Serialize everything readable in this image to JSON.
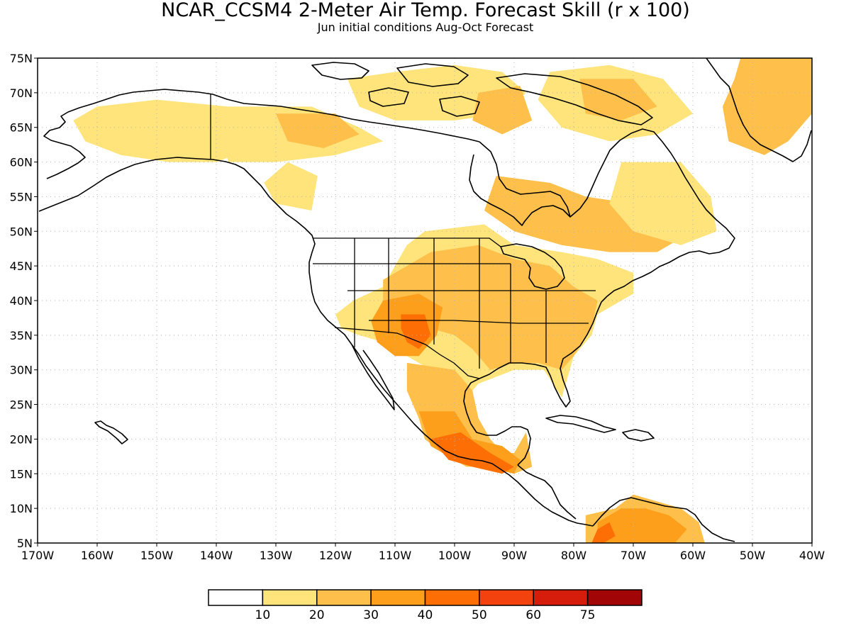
{
  "title": "NCAR_CCSM4 2-Meter Air Temp. Forecast Skill (r x 100)",
  "subtitle": "Jun initial conditions  Aug-Oct Forecast",
  "chart_data": {
    "type": "map",
    "lon_range": [
      -170,
      -40
    ],
    "lat_range": [
      5,
      75
    ],
    "lat_ticks": [
      {
        "value": 75,
        "label": "75N"
      },
      {
        "value": 70,
        "label": "70N"
      },
      {
        "value": 65,
        "label": "65N"
      },
      {
        "value": 60,
        "label": "60N"
      },
      {
        "value": 55,
        "label": "55N"
      },
      {
        "value": 50,
        "label": "50N"
      },
      {
        "value": 45,
        "label": "45N"
      },
      {
        "value": 40,
        "label": "40N"
      },
      {
        "value": 35,
        "label": "35N"
      },
      {
        "value": 30,
        "label": "30N"
      },
      {
        "value": 25,
        "label": "25N"
      },
      {
        "value": 20,
        "label": "20N"
      },
      {
        "value": 15,
        "label": "15N"
      },
      {
        "value": 10,
        "label": "10N"
      },
      {
        "value": 5,
        "label": "5N"
      }
    ],
    "lon_ticks": [
      {
        "value": -170,
        "label": "170W"
      },
      {
        "value": -160,
        "label": "160W"
      },
      {
        "value": -150,
        "label": "150W"
      },
      {
        "value": -140,
        "label": "140W"
      },
      {
        "value": -130,
        "label": "130W"
      },
      {
        "value": -120,
        "label": "120W"
      },
      {
        "value": -110,
        "label": "110W"
      },
      {
        "value": -100,
        "label": "100W"
      },
      {
        "value": -90,
        "label": "90W"
      },
      {
        "value": -80,
        "label": "80W"
      },
      {
        "value": -70,
        "label": "70W"
      },
      {
        "value": -60,
        "label": "60W"
      },
      {
        "value": -50,
        "label": "50W"
      },
      {
        "value": -40,
        "label": "40W"
      }
    ],
    "grid": true,
    "legend": {
      "placement": "bottom",
      "colors": [
        "#ffffff",
        "#fee47a",
        "#fec04a",
        "#fe9f1c",
        "#fd6f05",
        "#f4420f",
        "#d61c0b",
        "#a20505"
      ],
      "labels": [
        "10",
        "20",
        "30",
        "40",
        "50",
        "60",
        "75"
      ]
    },
    "skill_regions": [
      {
        "level": 1,
        "points": [
          [
            -160,
            68
          ],
          [
            -150,
            69
          ],
          [
            -138,
            68
          ],
          [
            -132,
            66
          ],
          [
            -134,
            62
          ],
          [
            -140,
            60
          ],
          [
            -148,
            60
          ],
          [
            -156,
            61
          ],
          [
            -162,
            63
          ],
          [
            -164,
            66
          ]
        ]
      },
      {
        "level": 1,
        "points": [
          [
            -140,
            68
          ],
          [
            -124,
            68
          ],
          [
            -116,
            65
          ],
          [
            -112,
            63
          ],
          [
            -120,
            61
          ],
          [
            -130,
            60
          ],
          [
            -138,
            60
          ]
        ]
      },
      {
        "level": 1,
        "points": [
          [
            -128,
            60
          ],
          [
            -123,
            58
          ],
          [
            -124,
            53
          ],
          [
            -130,
            54
          ],
          [
            -132,
            57
          ]
        ]
      },
      {
        "level": 2,
        "points": [
          [
            -130,
            67
          ],
          [
            -120,
            67
          ],
          [
            -116,
            64
          ],
          [
            -122,
            62
          ],
          [
            -128,
            63
          ]
        ]
      },
      {
        "level": 1,
        "points": [
          [
            -118,
            72
          ],
          [
            -110,
            73
          ],
          [
            -100,
            74
          ],
          [
            -92,
            73
          ],
          [
            -88,
            70
          ],
          [
            -92,
            67
          ],
          [
            -100,
            66
          ],
          [
            -110,
            66
          ],
          [
            -116,
            68
          ]
        ]
      },
      {
        "level": 2,
        "points": [
          [
            -96,
            70
          ],
          [
            -89,
            71
          ],
          [
            -87,
            66
          ],
          [
            -92,
            64
          ],
          [
            -97,
            66
          ]
        ]
      },
      {
        "level": 1,
        "points": [
          [
            -84,
            73
          ],
          [
            -74,
            74
          ],
          [
            -65,
            72
          ],
          [
            -60,
            67
          ],
          [
            -66,
            64
          ],
          [
            -74,
            63
          ],
          [
            -82,
            65
          ],
          [
            -86,
            69
          ]
        ]
      },
      {
        "level": 2,
        "points": [
          [
            -79,
            72
          ],
          [
            -70,
            72
          ],
          [
            -66,
            68
          ],
          [
            -72,
            66
          ],
          [
            -78,
            67
          ]
        ]
      },
      {
        "level": 2,
        "points": [
          [
            -93,
            58
          ],
          [
            -84,
            57
          ],
          [
            -78,
            55
          ],
          [
            -70,
            54
          ],
          [
            -62,
            53
          ],
          [
            -60,
            50
          ],
          [
            -66,
            47
          ],
          [
            -74,
            47
          ],
          [
            -82,
            48
          ],
          [
            -90,
            50
          ],
          [
            -95,
            53
          ]
        ]
      },
      {
        "level": 1,
        "points": [
          [
            -72,
            60
          ],
          [
            -62,
            60
          ],
          [
            -57,
            55
          ],
          [
            -56,
            50
          ],
          [
            -62,
            48
          ],
          [
            -70,
            50
          ],
          [
            -74,
            54
          ]
        ]
      },
      {
        "level": 1,
        "points": [
          [
            -105,
            50
          ],
          [
            -95,
            51
          ],
          [
            -90,
            48
          ],
          [
            -82,
            47
          ],
          [
            -76,
            46
          ],
          [
            -70,
            44
          ],
          [
            -70,
            41
          ],
          [
            -76,
            38
          ],
          [
            -77,
            35
          ],
          [
            -80,
            32
          ],
          [
            -81,
            29
          ],
          [
            -82,
            26
          ],
          [
            -85,
            30
          ],
          [
            -90,
            30
          ],
          [
            -96,
            28
          ],
          [
            -98,
            26
          ],
          [
            -100,
            28
          ],
          [
            -104,
            30
          ],
          [
            -108,
            32
          ],
          [
            -112,
            34
          ],
          [
            -116,
            35
          ],
          [
            -119,
            36
          ],
          [
            -120,
            38
          ],
          [
            -117,
            40
          ],
          [
            -112,
            42
          ],
          [
            -110,
            45
          ],
          [
            -108,
            48
          ]
        ]
      },
      {
        "level": 2,
        "points": [
          [
            -104,
            47
          ],
          [
            -96,
            48
          ],
          [
            -90,
            46
          ],
          [
            -84,
            45
          ],
          [
            -80,
            42
          ],
          [
            -76,
            40
          ],
          [
            -77,
            36
          ],
          [
            -80,
            32
          ],
          [
            -82,
            30
          ],
          [
            -86,
            31
          ],
          [
            -90,
            31
          ],
          [
            -94,
            30
          ],
          [
            -97,
            33
          ],
          [
            -100,
            35
          ],
          [
            -104,
            36
          ],
          [
            -108,
            38
          ],
          [
            -112,
            40
          ],
          [
            -112,
            43
          ],
          [
            -108,
            45
          ]
        ]
      },
      {
        "level": 3,
        "points": [
          [
            -112,
            40
          ],
          [
            -106,
            41
          ],
          [
            -102,
            39
          ],
          [
            -103,
            35
          ],
          [
            -106,
            32
          ],
          [
            -110,
            32
          ],
          [
            -113,
            34
          ],
          [
            -114,
            37
          ]
        ]
      },
      {
        "level": 4,
        "points": [
          [
            -109,
            38
          ],
          [
            -105,
            38
          ],
          [
            -104,
            35
          ],
          [
            -106,
            33
          ],
          [
            -108,
            34
          ],
          [
            -109,
            36
          ]
        ]
      },
      {
        "level": 2,
        "points": [
          [
            -108,
            31
          ],
          [
            -100,
            30
          ],
          [
            -97,
            27
          ],
          [
            -96,
            23
          ],
          [
            -94,
            20
          ],
          [
            -92,
            18
          ],
          [
            -90,
            18
          ],
          [
            -88,
            21
          ],
          [
            -87,
            16
          ],
          [
            -90,
            15
          ],
          [
            -94,
            16
          ],
          [
            -98,
            16
          ],
          [
            -102,
            18
          ],
          [
            -105,
            20
          ],
          [
            -106,
            23
          ],
          [
            -108,
            27
          ]
        ]
      },
      {
        "level": 3,
        "points": [
          [
            -106,
            24
          ],
          [
            -100,
            24
          ],
          [
            -97,
            20
          ],
          [
            -92,
            19
          ],
          [
            -89,
            17
          ],
          [
            -90,
            15
          ],
          [
            -95,
            16
          ],
          [
            -100,
            17
          ],
          [
            -104,
            19
          ]
        ]
      },
      {
        "level": 4,
        "points": [
          [
            -104,
            20
          ],
          [
            -99,
            21
          ],
          [
            -94,
            18
          ],
          [
            -90,
            16
          ],
          [
            -92,
            15
          ],
          [
            -97,
            16
          ],
          [
            -101,
            17
          ]
        ]
      },
      {
        "level": 2,
        "points": [
          [
            -78,
            9
          ],
          [
            -73,
            10
          ],
          [
            -70,
            12
          ],
          [
            -66,
            11
          ],
          [
            -62,
            10
          ],
          [
            -59,
            8
          ],
          [
            -58,
            5
          ],
          [
            -66,
            5
          ],
          [
            -74,
            5
          ],
          [
            -78,
            5
          ]
        ]
      },
      {
        "level": 3,
        "points": [
          [
            -76,
            8
          ],
          [
            -72,
            10
          ],
          [
            -68,
            10
          ],
          [
            -64,
            9
          ],
          [
            -61,
            7
          ],
          [
            -63,
            5
          ],
          [
            -70,
            5
          ],
          [
            -76,
            5
          ]
        ]
      },
      {
        "level": 4,
        "points": [
          [
            -76,
            7
          ],
          [
            -74,
            8
          ],
          [
            -73,
            6
          ],
          [
            -75,
            5
          ],
          [
            -77,
            5
          ]
        ]
      },
      {
        "level": 2,
        "points": [
          [
            -52,
            75
          ],
          [
            -40,
            75
          ],
          [
            -40,
            67
          ],
          [
            -44,
            63
          ],
          [
            -48,
            61
          ],
          [
            -54,
            63
          ],
          [
            -55,
            68
          ],
          [
            -53,
            72
          ]
        ]
      }
    ]
  }
}
